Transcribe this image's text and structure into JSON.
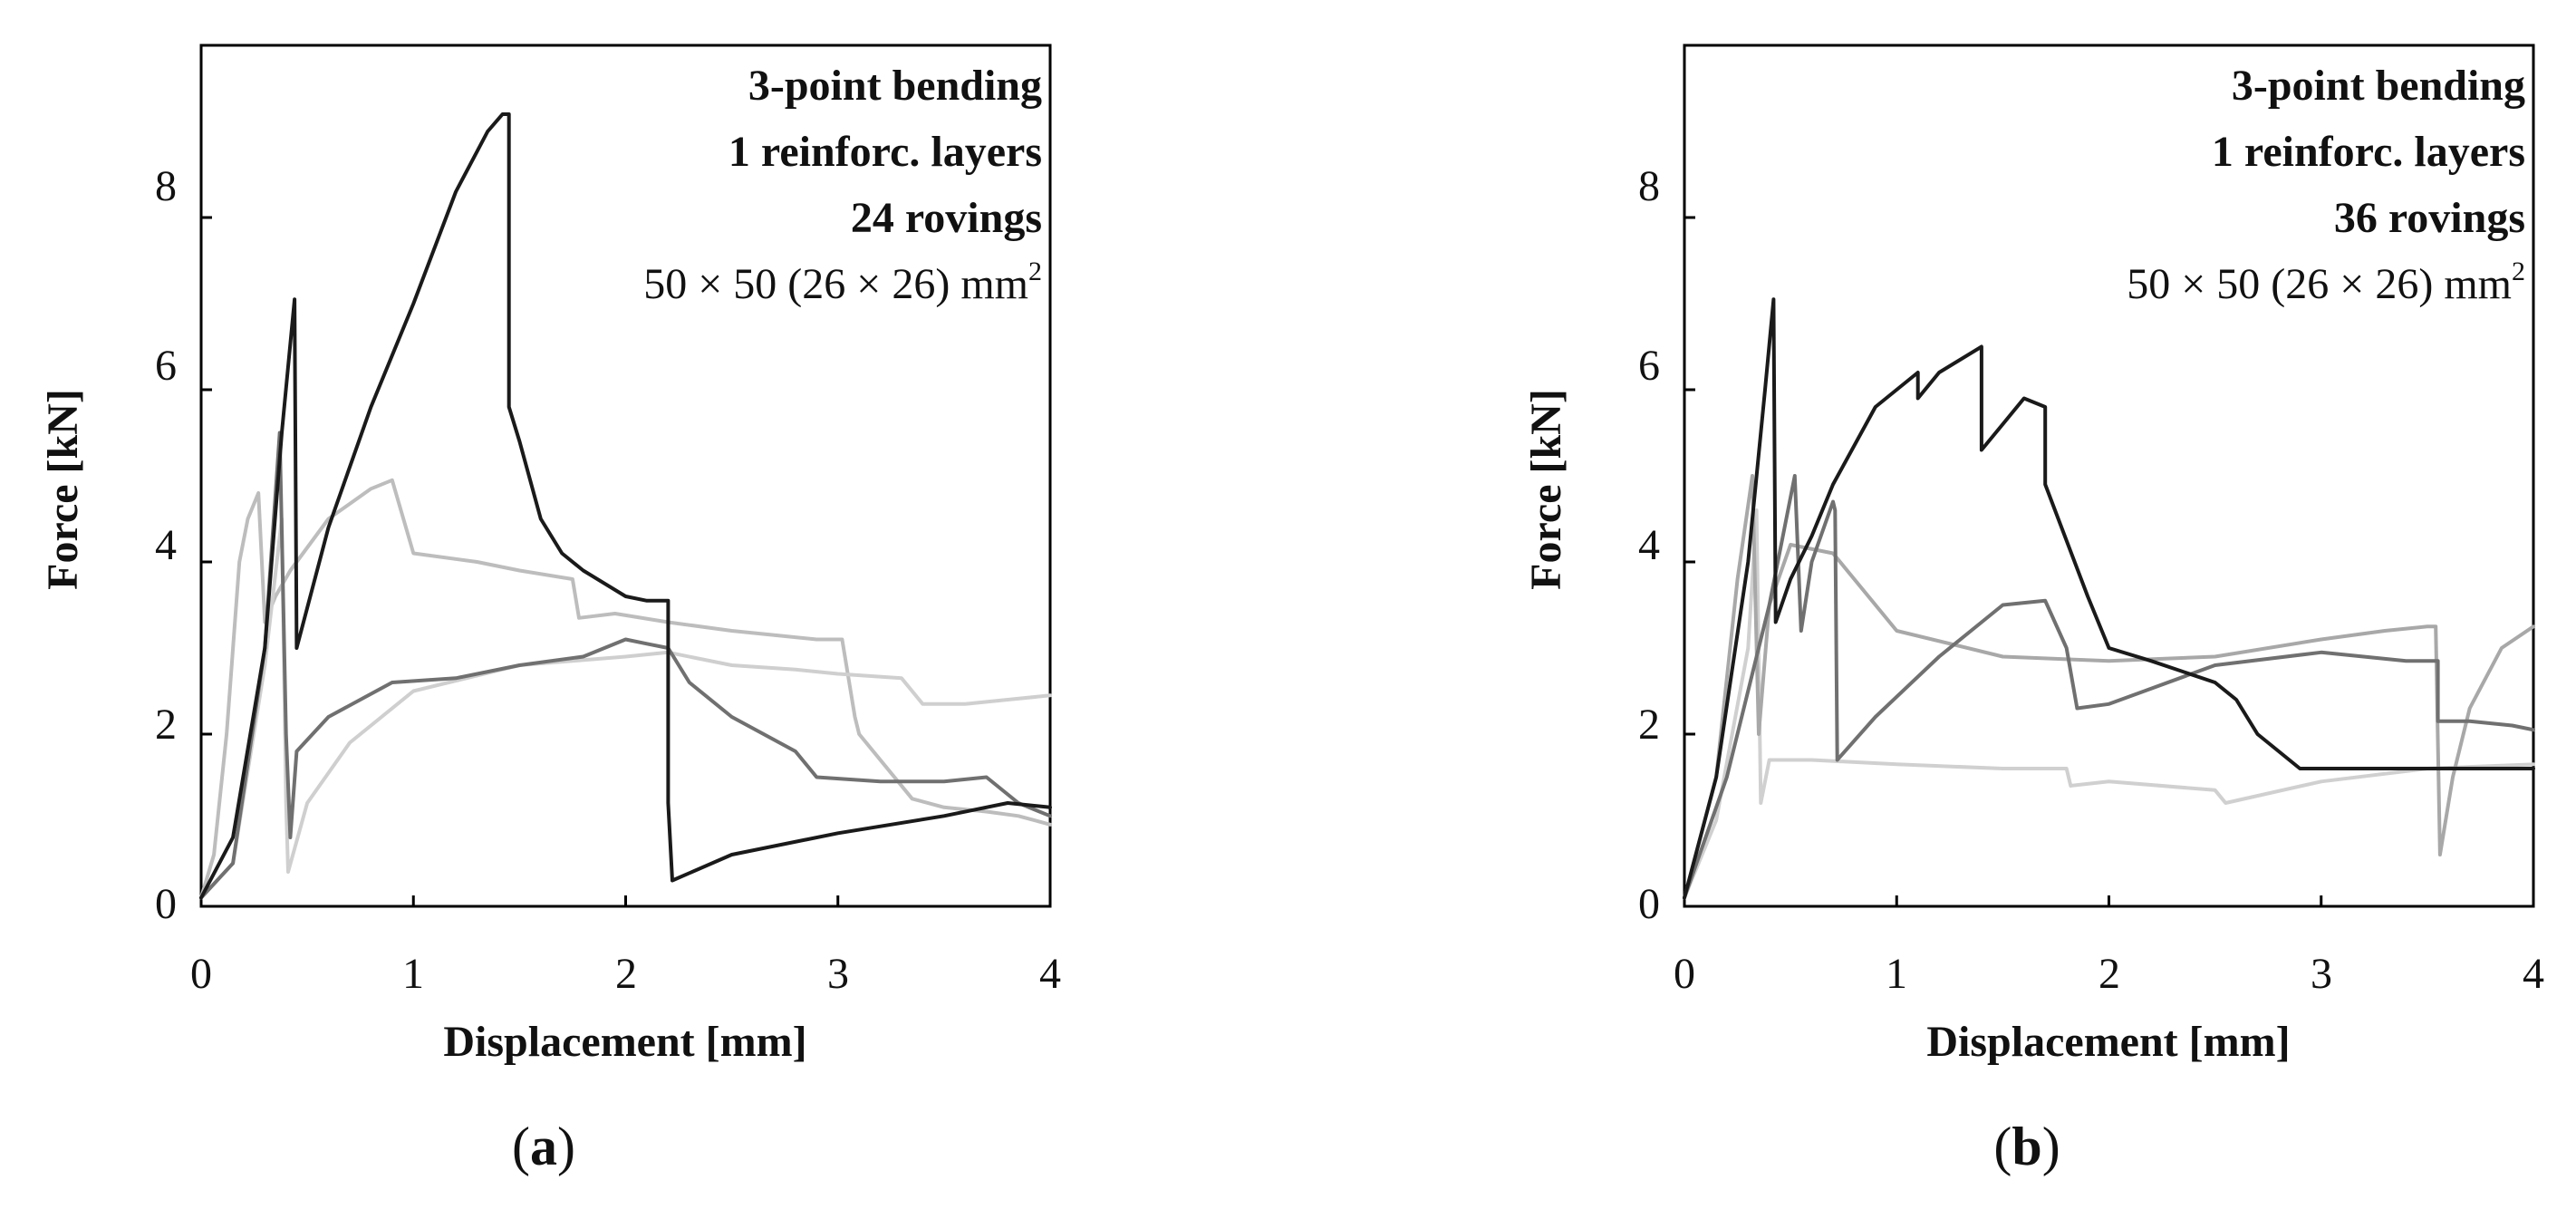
{
  "chart_data": [
    {
      "type": "line",
      "panel_label": "(a)",
      "panel_label_letter": "a",
      "xlabel": "Displacement [mm]",
      "ylabel": "Force [kN]",
      "xlim": [
        0,
        4
      ],
      "ylim": [
        0,
        10
      ],
      "xticks": [
        0,
        1,
        2,
        3,
        4
      ],
      "yticks": [
        0,
        2,
        4,
        6,
        8
      ],
      "annotations": [
        "3-point bending",
        "1 reinforc. layers",
        "24 rovings",
        "50 × 50 (26 × 26) mm",
        "2"
      ],
      "series": [
        {
          "color": "#bdbdbd",
          "x": [
            0,
            0.06,
            0.12,
            0.18,
            0.22,
            0.27,
            0.3,
            0.35,
            0.42,
            0.6,
            0.8,
            0.9,
            1.0,
            1.3,
            1.5,
            1.75,
            1.78,
            1.95,
            2.2,
            2.5,
            2.7,
            2.9,
            3.02,
            3.08,
            3.1,
            3.35,
            3.5,
            3.7,
            3.85,
            4.0
          ],
          "y": [
            0.1,
            0.6,
            2.0,
            4.0,
            4.5,
            4.8,
            3.3,
            3.6,
            3.9,
            4.5,
            4.85,
            4.95,
            4.1,
            4.0,
            3.9,
            3.8,
            3.35,
            3.4,
            3.3,
            3.2,
            3.15,
            3.1,
            3.1,
            2.2,
            2.0,
            1.25,
            1.15,
            1.1,
            1.05,
            0.95
          ]
        },
        {
          "color": "#cfcfcf",
          "x": [
            0,
            0.15,
            0.3,
            0.38,
            0.4,
            0.41,
            0.5,
            0.7,
            1.0,
            1.5,
            2.0,
            2.2,
            2.5,
            2.8,
            3.0,
            3.3,
            3.4,
            3.6,
            3.8,
            4.0
          ],
          "y": [
            0.1,
            0.5,
            2.8,
            4.5,
            1.2,
            0.4,
            1.2,
            1.9,
            2.5,
            2.8,
            2.9,
            2.95,
            2.8,
            2.75,
            2.7,
            2.65,
            2.35,
            2.35,
            2.4,
            2.45
          ]
        },
        {
          "color": "#707070",
          "x": [
            0,
            0.15,
            0.3,
            0.37,
            0.4,
            0.42,
            0.45,
            0.6,
            0.9,
            1.2,
            1.5,
            1.8,
            2.0,
            2.1,
            2.2,
            2.3,
            2.5,
            2.8,
            2.9,
            3.2,
            3.5,
            3.7,
            3.85,
            4.0
          ],
          "y": [
            0.1,
            0.5,
            3.0,
            5.5,
            2.0,
            0.8,
            1.8,
            2.2,
            2.6,
            2.65,
            2.8,
            2.9,
            3.1,
            3.05,
            3.0,
            2.6,
            2.2,
            1.8,
            1.5,
            1.45,
            1.45,
            1.5,
            1.2,
            1.05
          ]
        },
        {
          "color": "#1a1a1a",
          "x": [
            0,
            0.15,
            0.3,
            0.38,
            0.44,
            0.45,
            0.6,
            0.8,
            1.0,
            1.2,
            1.35,
            1.42,
            1.45,
            1.45,
            1.5,
            1.6,
            1.7,
            1.8,
            2.0,
            2.1,
            2.2,
            2.2,
            2.22,
            2.5,
            3.0,
            3.5,
            3.8,
            4.0
          ],
          "y": [
            0.1,
            0.8,
            3.0,
            5.5,
            7.05,
            3.0,
            4.4,
            5.8,
            7.0,
            8.3,
            9.0,
            9.2,
            9.2,
            5.8,
            5.4,
            4.5,
            4.1,
            3.9,
            3.6,
            3.55,
            3.55,
            1.2,
            0.3,
            0.6,
            0.85,
            1.05,
            1.2,
            1.15
          ]
        }
      ]
    },
    {
      "type": "line",
      "panel_label": "(b)",
      "panel_label_letter": "b",
      "xlabel": "Displacement [mm]",
      "ylabel": "Force [kN]",
      "xlim": [
        0,
        4
      ],
      "ylim": [
        0,
        10
      ],
      "xticks": [
        0,
        1,
        2,
        3,
        4
      ],
      "yticks": [
        0,
        2,
        4,
        6,
        8
      ],
      "annotations": [
        "3-point bending",
        "1 reinforc. layers",
        "36 rovings",
        "50 × 50 (26 × 26) mm",
        "2"
      ],
      "series": [
        {
          "color": "#d0d0d0",
          "x": [
            0,
            0.15,
            0.3,
            0.34,
            0.36,
            0.4,
            0.6,
            1.0,
            1.5,
            1.8,
            1.82,
            2.0,
            2.5,
            2.55,
            3.0,
            3.5,
            4.0
          ],
          "y": [
            0.1,
            1.0,
            3.0,
            4.6,
            1.2,
            1.7,
            1.7,
            1.65,
            1.6,
            1.6,
            1.4,
            1.45,
            1.35,
            1.2,
            1.45,
            1.6,
            1.65
          ]
        },
        {
          "color": "#a8a8a8",
          "x": [
            0,
            0.15,
            0.25,
            0.32,
            0.35,
            0.4,
            0.5,
            0.7,
            1.0,
            1.5,
            2.0,
            2.5,
            3.0,
            3.3,
            3.5,
            3.54,
            3.56,
            3.62,
            3.7,
            3.85,
            4.0
          ],
          "y": [
            0.1,
            1.5,
            3.8,
            5.0,
            2.0,
            3.5,
            4.2,
            4.1,
            3.2,
            2.9,
            2.85,
            2.9,
            3.1,
            3.2,
            3.25,
            3.25,
            0.6,
            1.5,
            2.3,
            3.0,
            3.25
          ]
        },
        {
          "color": "#707070",
          "x": [
            0,
            0.2,
            0.4,
            0.52,
            0.55,
            0.6,
            0.7,
            0.71,
            0.72,
            0.9,
            1.2,
            1.5,
            1.7,
            1.8,
            1.85,
            2.0,
            2.5,
            3.0,
            3.4,
            3.55,
            3.55,
            3.7,
            3.9,
            4.0
          ],
          "y": [
            0.1,
            1.5,
            3.5,
            5.0,
            3.2,
            4.0,
            4.7,
            4.6,
            1.7,
            2.2,
            2.9,
            3.5,
            3.55,
            3.0,
            2.3,
            2.35,
            2.8,
            2.95,
            2.85,
            2.85,
            2.15,
            2.15,
            2.1,
            2.05
          ]
        },
        {
          "color": "#1a1a1a",
          "x": [
            0,
            0.15,
            0.3,
            0.38,
            0.42,
            0.43,
            0.5,
            0.6,
            0.7,
            0.9,
            1.1,
            1.1,
            1.2,
            1.4,
            1.4,
            1.5,
            1.6,
            1.7,
            1.7,
            1.9,
            2.0,
            2.2,
            2.5,
            2.6,
            2.7,
            2.9,
            3.2,
            3.6,
            4.0
          ],
          "y": [
            0.1,
            1.5,
            4.0,
            6.0,
            7.05,
            3.3,
            3.8,
            4.3,
            4.9,
            5.8,
            6.2,
            5.9,
            6.2,
            6.5,
            5.3,
            5.6,
            5.9,
            5.8,
            4.9,
            3.6,
            3.0,
            2.85,
            2.6,
            2.4,
            2.0,
            1.6,
            1.6,
            1.6,
            1.6
          ]
        }
      ]
    }
  ]
}
